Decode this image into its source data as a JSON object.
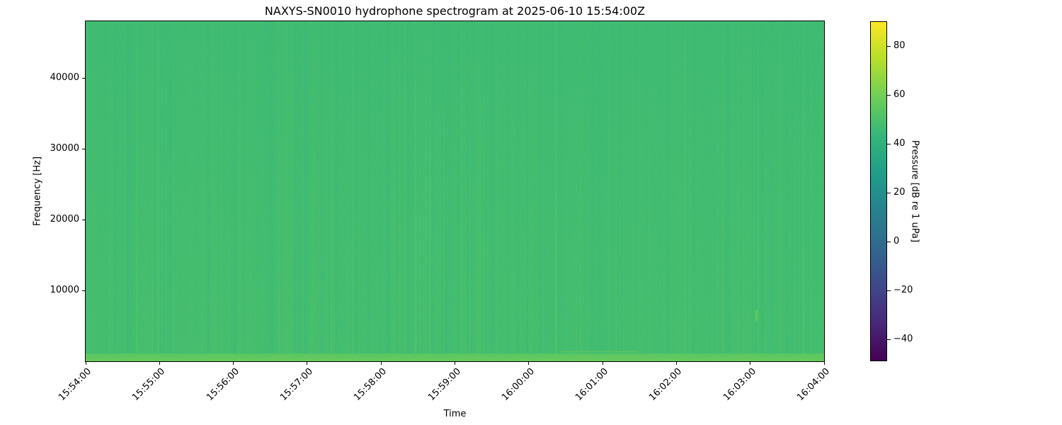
{
  "chart_data": {
    "type": "heatmap",
    "title": "NAXYS-SN0010 hydrophone spectrogram at 2025-06-10 15:54:00Z",
    "xlabel": "Time",
    "ylabel": "Frequency [Hz]",
    "xlim": [
      "15:54:00",
      "16:04:00"
    ],
    "ylim": [
      0,
      48000
    ],
    "x_ticks": [
      "15:54:00",
      "15:55:00",
      "15:56:00",
      "15:57:00",
      "15:58:00",
      "15:59:00",
      "16:00:00",
      "16:01:00",
      "16:02:00",
      "16:03:00",
      "16:04:00"
    ],
    "y_ticks": [
      10000,
      20000,
      30000,
      40000
    ],
    "colormap": "viridis",
    "colorbar": {
      "label": "Pressure [dB re 1 uPa]",
      "range": [
        -49,
        90
      ],
      "ticks": [
        -40,
        -20,
        0,
        20,
        40,
        60,
        80
      ]
    },
    "typical_level_db": 48,
    "low_frequency_band_db": 58,
    "features": [
      {
        "type": "tonal line",
        "start": "16:00:25",
        "end": "16:01:28",
        "frequency_hz": 1400,
        "level_db": 56
      },
      {
        "type": "transient",
        "time": "16:03:05",
        "frequency_hz": 6500,
        "level_db": 56
      }
    ]
  }
}
